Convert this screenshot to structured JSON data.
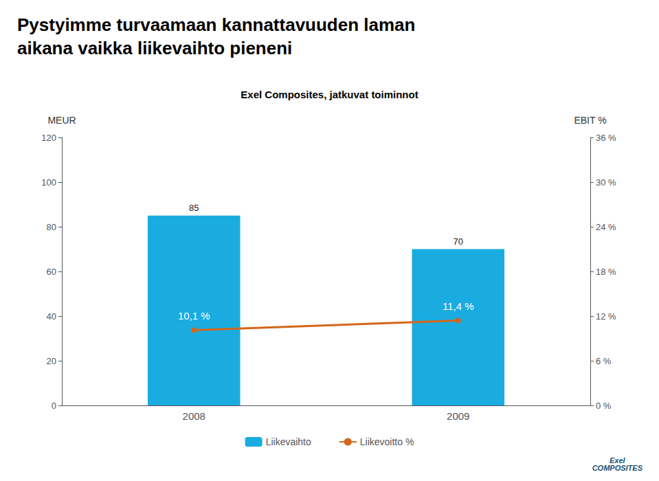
{
  "chart_data": {
    "type": "bar",
    "title": "Pystyimme turvaamaan kannattavuuden laman\naikana vaikka liikevaihto pieneni",
    "subtitle": "Exel Composites, jatkuvat toiminnot",
    "ylabel": "MEUR",
    "y2label": "EBIT %",
    "categories": [
      "2008",
      "2009"
    ],
    "series": [
      {
        "name": "Liikevaihto",
        "type": "bar",
        "color": "#1aace0",
        "values": [
          85,
          70
        ],
        "data_labels": true
      },
      {
        "name": "Liikevoitto %",
        "type": "line",
        "color": "#d4661a",
        "axis": "y2",
        "marker": "circle",
        "values": [
          10.1,
          11.4
        ],
        "value_labels": [
          "10,1 %",
          "11,4 %"
        ],
        "data_labels": true
      }
    ],
    "ylim": [
      0,
      120
    ],
    "yticks": [
      0,
      20,
      40,
      60,
      80,
      100,
      120
    ],
    "y2lim": [
      0,
      36
    ],
    "y2ticks": [
      {
        "value": 0,
        "label": "0 %"
      },
      {
        "value": 6,
        "label": "6 %"
      },
      {
        "value": 12,
        "label": "12 %"
      },
      {
        "value": 18,
        "label": "18 %"
      },
      {
        "value": 24,
        "label": "24 %"
      },
      {
        "value": 30,
        "label": "30 %"
      },
      {
        "value": 36,
        "label": "36 %"
      }
    ],
    "grid": false,
    "legend": "bottom",
    "annotations": [
      {
        "text": "Exel\nCOMPOSITES",
        "color": "#1a5276"
      }
    ]
  }
}
